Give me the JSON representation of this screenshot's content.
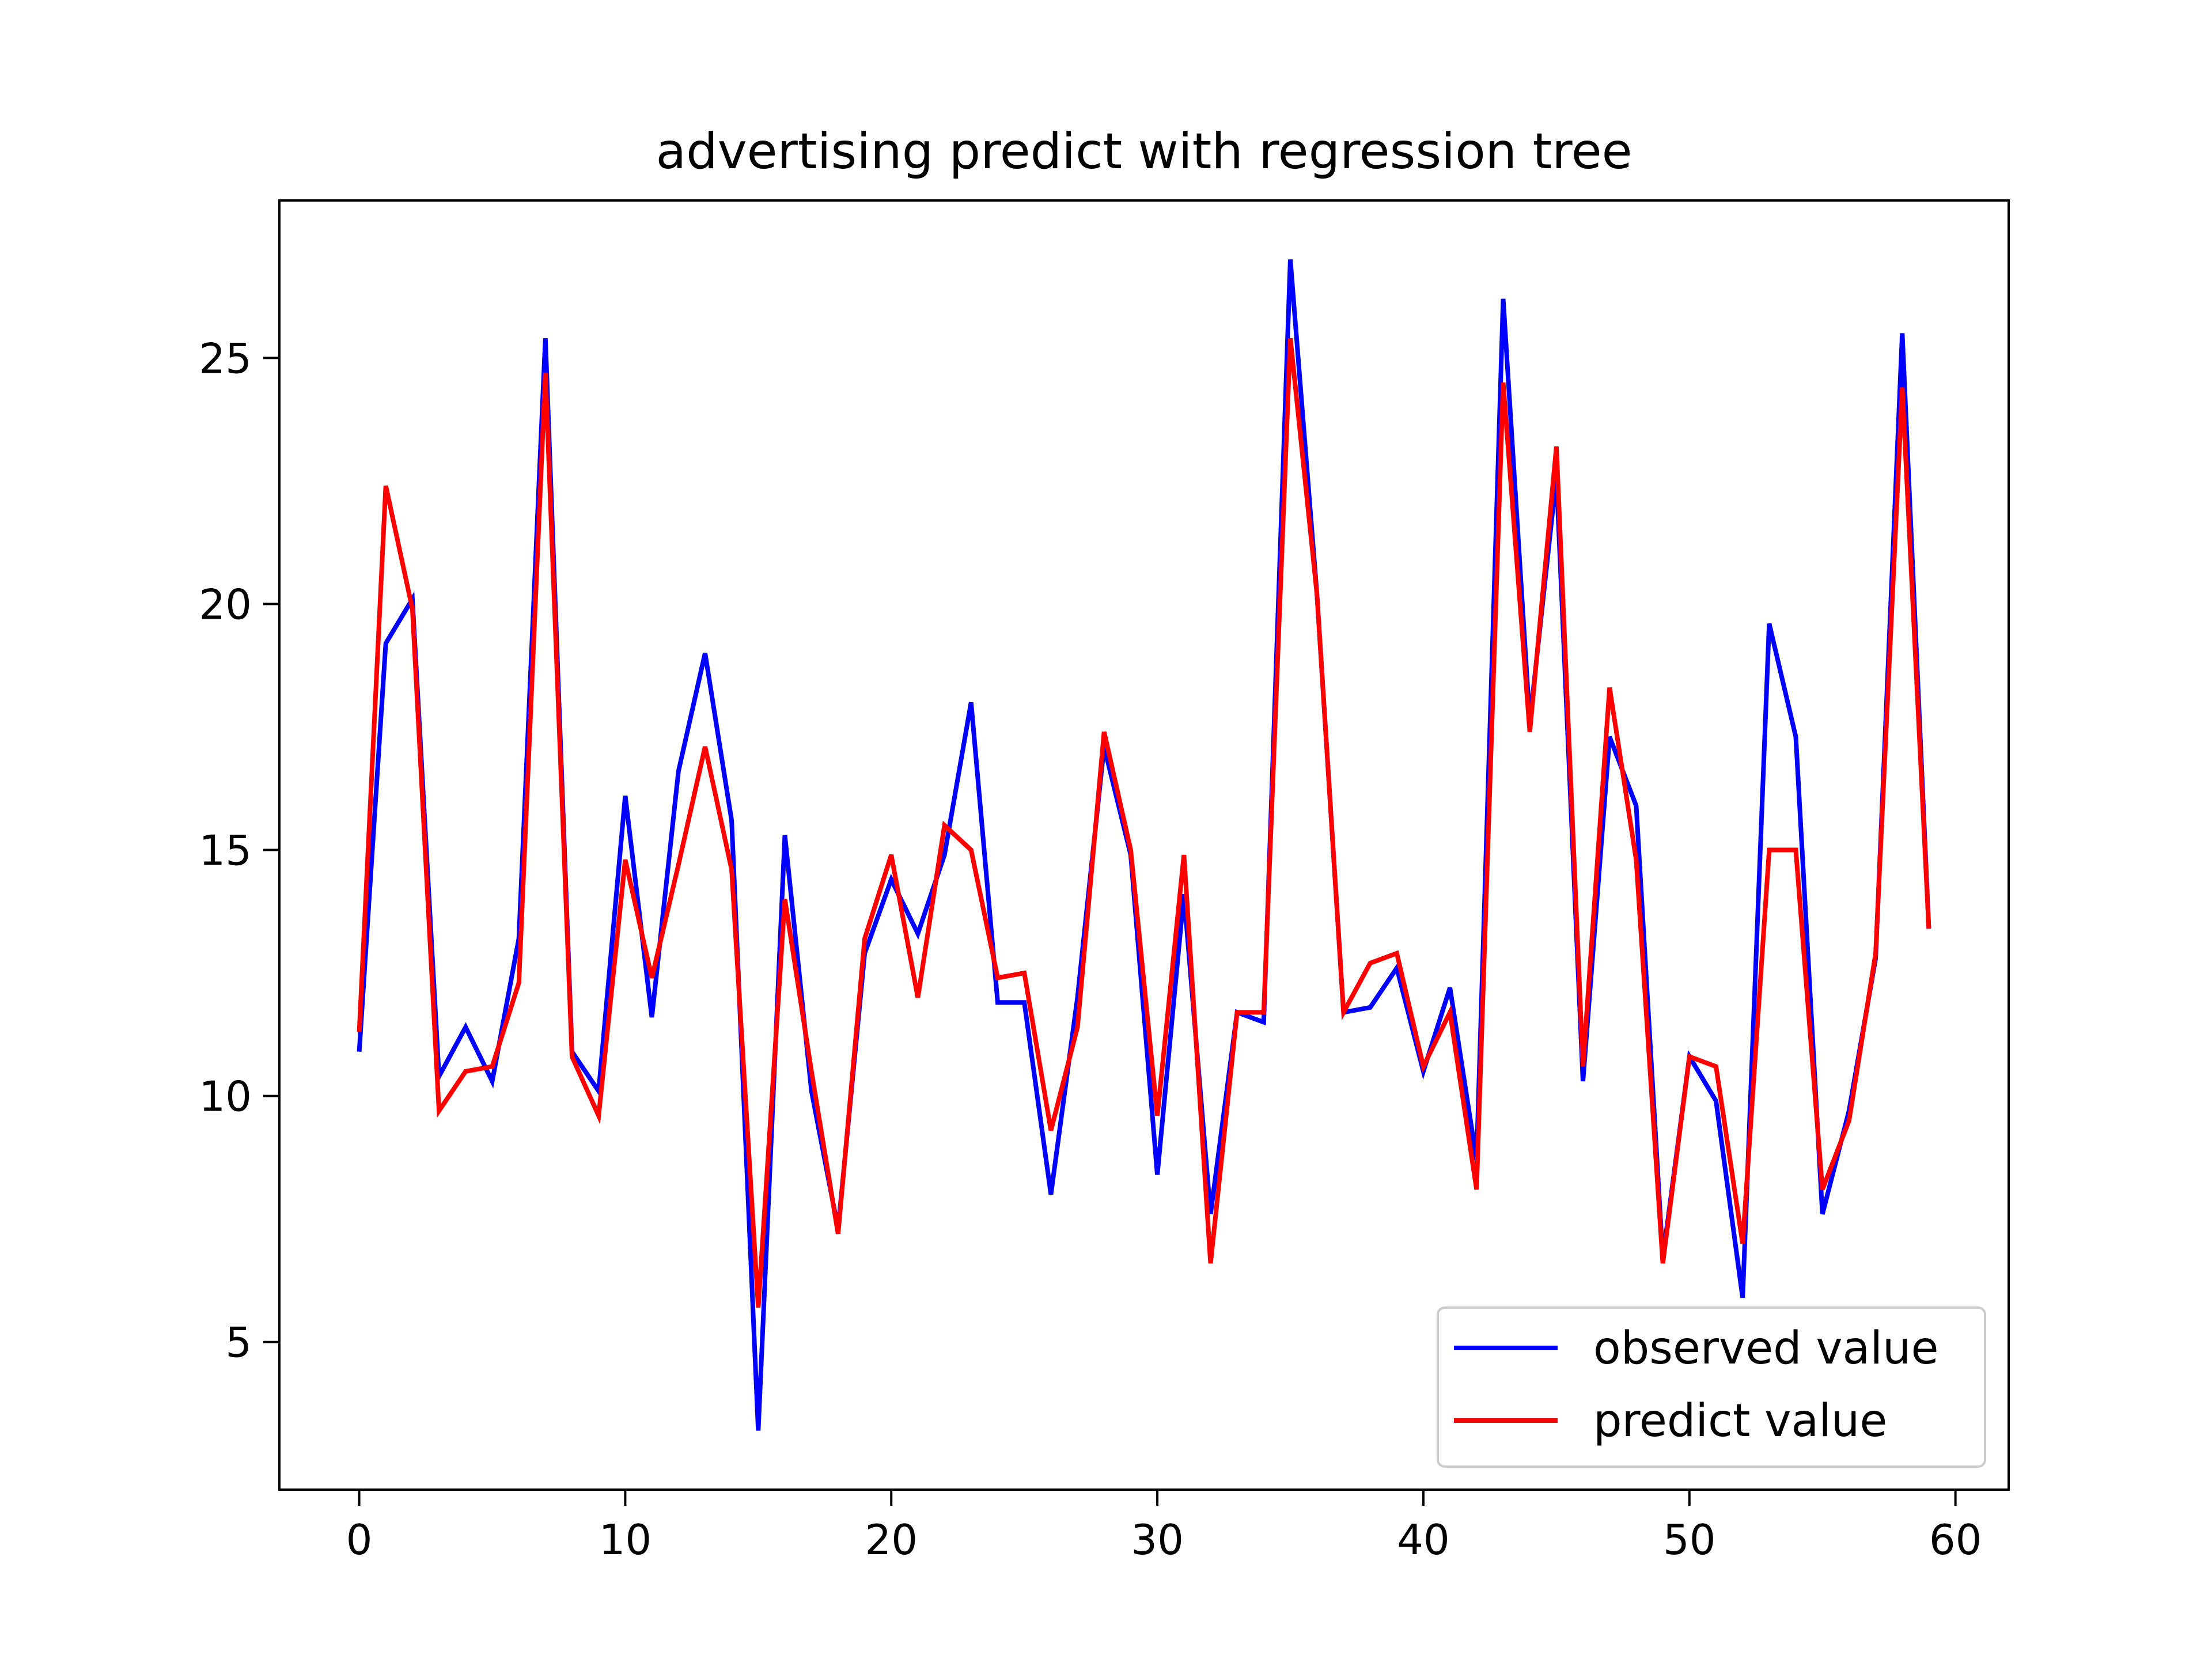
{
  "chart_data": {
    "type": "line",
    "title": "advertising predict with regression tree",
    "xlabel": "",
    "ylabel": "",
    "xlim": [
      -3,
      62
    ],
    "ylim": [
      2,
      28.2
    ],
    "xticks": [
      0,
      10,
      20,
      30,
      40,
      50,
      60
    ],
    "yticks": [
      5,
      10,
      15,
      20,
      25
    ],
    "grid": false,
    "legend_position": "lower-right",
    "series": [
      {
        "name": "observed value",
        "color": "#0000ff",
        "x": [
          0,
          1,
          2,
          3,
          4,
          5,
          6,
          7,
          8,
          9,
          10,
          11,
          12,
          13,
          14,
          15,
          16,
          17,
          18,
          19,
          20,
          21,
          22,
          23,
          24,
          25,
          26,
          27,
          28,
          29,
          30,
          31,
          32,
          33,
          34,
          35,
          36,
          37,
          38,
          39,
          40,
          41,
          42,
          43,
          44,
          45,
          46,
          47,
          48,
          49,
          50,
          51,
          52,
          53,
          54,
          55,
          56,
          57,
          58,
          59
        ],
        "values": [
          10.9,
          19.2,
          20.1,
          10.4,
          11.4,
          10.3,
          13.2,
          25.4,
          10.9,
          10.1,
          16.1,
          11.6,
          16.6,
          19.0,
          15.6,
          3.2,
          15.3,
          10.1,
          7.3,
          12.9,
          14.4,
          13.3,
          14.9,
          18.0,
          11.9,
          11.9,
          8.0,
          12.0,
          17.1,
          14.9,
          8.4,
          14.1,
          7.6,
          11.7,
          11.5,
          27.0,
          20.2,
          11.7,
          11.8,
          12.6,
          10.5,
          12.2,
          8.7,
          26.2,
          17.6,
          22.6,
          10.3,
          17.3,
          15.9,
          6.7,
          10.8,
          9.9,
          5.9,
          19.6,
          17.3,
          7.6,
          9.7,
          12.8,
          25.5,
          13.4
        ]
      },
      {
        "name": "predict value",
        "color": "#ff0000",
        "x": [
          0,
          1,
          2,
          3,
          4,
          5,
          6,
          7,
          8,
          9,
          10,
          11,
          12,
          13,
          14,
          15,
          16,
          17,
          18,
          19,
          20,
          21,
          22,
          23,
          24,
          25,
          26,
          27,
          28,
          29,
          30,
          31,
          32,
          33,
          34,
          35,
          36,
          37,
          38,
          39,
          40,
          41,
          42,
          43,
          44,
          45,
          46,
          47,
          48,
          49,
          50,
          51,
          52,
          53,
          54,
          55,
          56,
          57,
          58,
          59
        ],
        "values": [
          11.3,
          22.4,
          19.9,
          9.7,
          10.5,
          10.6,
          12.3,
          24.7,
          10.8,
          9.6,
          14.8,
          12.4,
          14.7,
          17.1,
          14.6,
          5.7,
          14.0,
          10.5,
          7.2,
          13.2,
          14.9,
          12.0,
          15.5,
          15.0,
          12.4,
          12.5,
          9.3,
          11.4,
          17.4,
          15.0,
          9.6,
          14.9,
          6.6,
          11.7,
          11.7,
          25.4,
          20.2,
          11.7,
          12.7,
          12.9,
          10.6,
          11.7,
          8.1,
          24.5,
          17.4,
          23.2,
          10.6,
          18.3,
          14.8,
          6.6,
          10.8,
          10.6,
          7.0,
          15.0,
          15.0,
          8.1,
          9.5,
          12.9,
          24.4,
          13.4
        ]
      }
    ]
  }
}
